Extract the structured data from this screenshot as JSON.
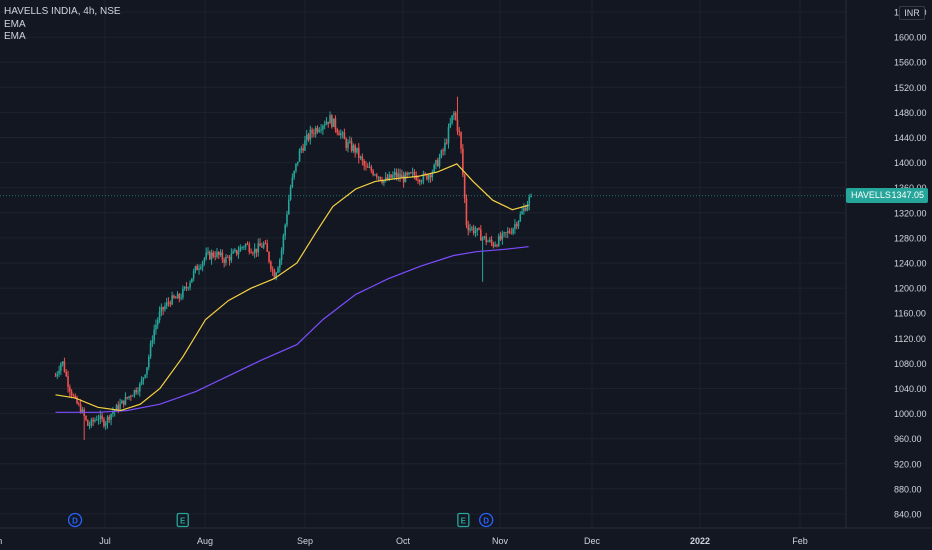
{
  "header": {
    "symbol_line": "HAVELLS INDIA, 4h, NSE",
    "indicators": [
      "EMA",
      "EMA"
    ]
  },
  "currency": "INR",
  "price_tag": {
    "symbol": "HAVELLS",
    "value": "1347.05"
  },
  "events": [
    {
      "letter": "D",
      "at": "Jun 24"
    },
    {
      "letter": "E",
      "at": "Jul 27"
    },
    {
      "letter": "E",
      "at": "Oct 21"
    },
    {
      "letter": "D",
      "at": "Oct 28"
    }
  ],
  "colors": {
    "background": "#131722",
    "up": "#26a69a",
    "down": "#ef5350",
    "ema_fast": "#f5d142",
    "ema_slow": "#7c4dff",
    "text": "#d1d4dc",
    "grid": "#1e222d"
  },
  "chart_data": {
    "type": "candlestick",
    "title": "HAVELLS INDIA, 4h, NSE",
    "x_tick_labels": [
      "Jun",
      "Jul",
      "Aug",
      "Sep",
      "Oct",
      "Nov",
      "Dec",
      "2022",
      "Feb"
    ],
    "y_tick_labels": [
      "840.00",
      "880.00",
      "920.00",
      "960.00",
      "1000.00",
      "1040.00",
      "1080.00",
      "1120.00",
      "1160.00",
      "1200.00",
      "1240.00",
      "1280.00",
      "1320.00",
      "1360.00",
      "1400.00",
      "1440.00",
      "1480.00",
      "1520.00",
      "1560.00",
      "1600.00",
      "1640.00"
    ],
    "ylim": [
      820,
      1650
    ],
    "last_price": 1347.05,
    "close_path": [
      [
        "Jun 18",
        1060
      ],
      [
        "Jun 20",
        1085
      ],
      [
        "Jun 22",
        1045
      ],
      [
        "Jun 24",
        1020
      ],
      [
        "Jun 26",
        1005
      ],
      [
        "Jun 28",
        980
      ],
      [
        "Jul 1",
        995
      ],
      [
        "Jul 3",
        985
      ],
      [
        "Jul 5",
        1000
      ],
      [
        "Jul 8",
        1015
      ],
      [
        "Jul 11",
        1030
      ],
      [
        "Jul 14",
        1045
      ],
      [
        "Jul 16",
        1075
      ],
      [
        "Jul 18",
        1130
      ],
      [
        "Jul 20",
        1160
      ],
      [
        "Jul 23",
        1180
      ],
      [
        "Jul 26",
        1185
      ],
      [
        "Jul 28",
        1200
      ],
      [
        "Jul 31",
        1230
      ],
      [
        "Aug 3",
        1250
      ],
      [
        "Aug 6",
        1255
      ],
      [
        "Aug 9",
        1245
      ],
      [
        "Aug 12",
        1255
      ],
      [
        "Aug 15",
        1270
      ],
      [
        "Aug 18",
        1260
      ],
      [
        "Aug 21",
        1270
      ],
      [
        "Aug 24",
        1220
      ],
      [
        "Aug 26",
        1250
      ],
      [
        "Aug 29",
        1360
      ],
      [
        "Sep 1",
        1420
      ],
      [
        "Sep 4",
        1445
      ],
      [
        "Sep 7",
        1460
      ],
      [
        "Sep 10",
        1470
      ],
      [
        "Sep 13",
        1450
      ],
      [
        "Sep 15",
        1430
      ],
      [
        "Sep 18",
        1420
      ],
      [
        "Sep 21",
        1390
      ],
      [
        "Sep 24",
        1385
      ],
      [
        "Sep 27",
        1370
      ],
      [
        "Sep 30",
        1380
      ],
      [
        "Oct 3",
        1375
      ],
      [
        "Oct 6",
        1380
      ],
      [
        "Oct 9",
        1375
      ],
      [
        "Oct 12",
        1390
      ],
      [
        "Oct 15",
        1420
      ],
      [
        "Oct 18",
        1480
      ],
      [
        "Oct 20",
        1440
      ],
      [
        "Oct 22",
        1300
      ],
      [
        "Oct 25",
        1290
      ],
      [
        "Oct 27",
        1280
      ],
      [
        "Oct 30",
        1270
      ],
      [
        "Nov 2",
        1280
      ],
      [
        "Nov 5",
        1295
      ],
      [
        "Nov 8",
        1320
      ],
      [
        "Nov 10",
        1340
      ],
      [
        "Nov 11",
        1347.05
      ]
    ],
    "series": [
      {
        "name": "EMA",
        "values": [
          [
            "Jun 18",
            1030
          ],
          [
            "Jun 24",
            1025
          ],
          [
            "Jul 1",
            1010
          ],
          [
            "Jul 8",
            1005
          ],
          [
            "Jul 14",
            1015
          ],
          [
            "Jul 20",
            1040
          ],
          [
            "Jul 27",
            1090
          ],
          [
            "Aug 3",
            1150
          ],
          [
            "Aug 10",
            1180
          ],
          [
            "Aug 17",
            1200
          ],
          [
            "Aug 24",
            1215
          ],
          [
            "Aug 31",
            1240
          ],
          [
            "Sep 6",
            1290
          ],
          [
            "Sep 11",
            1330
          ],
          [
            "Sep 18",
            1358
          ],
          [
            "Sep 24",
            1370
          ],
          [
            "Oct 1",
            1375
          ],
          [
            "Oct 7",
            1378
          ],
          [
            "Oct 13",
            1385
          ],
          [
            "Oct 19",
            1398
          ],
          [
            "Oct 24",
            1370
          ],
          [
            "Oct 30",
            1340
          ],
          [
            "Nov 5",
            1325
          ],
          [
            "Nov 10",
            1332
          ]
        ]
      },
      {
        "name": "EMA",
        "values": [
          [
            "Jun 18",
            1002
          ],
          [
            "Jul 1",
            1002
          ],
          [
            "Jul 10",
            1005
          ],
          [
            "Jul 20",
            1015
          ],
          [
            "Jul 31",
            1035
          ],
          [
            "Aug 10",
            1060
          ],
          [
            "Aug 20",
            1085
          ],
          [
            "Aug 31",
            1110
          ],
          [
            "Sep 8",
            1150
          ],
          [
            "Sep 18",
            1190
          ],
          [
            "Sep 28",
            1215
          ],
          [
            "Oct 8",
            1235
          ],
          [
            "Oct 18",
            1252
          ],
          [
            "Oct 25",
            1258
          ],
          [
            "Nov 3",
            1262
          ],
          [
            "Nov 10",
            1266
          ]
        ]
      }
    ]
  }
}
